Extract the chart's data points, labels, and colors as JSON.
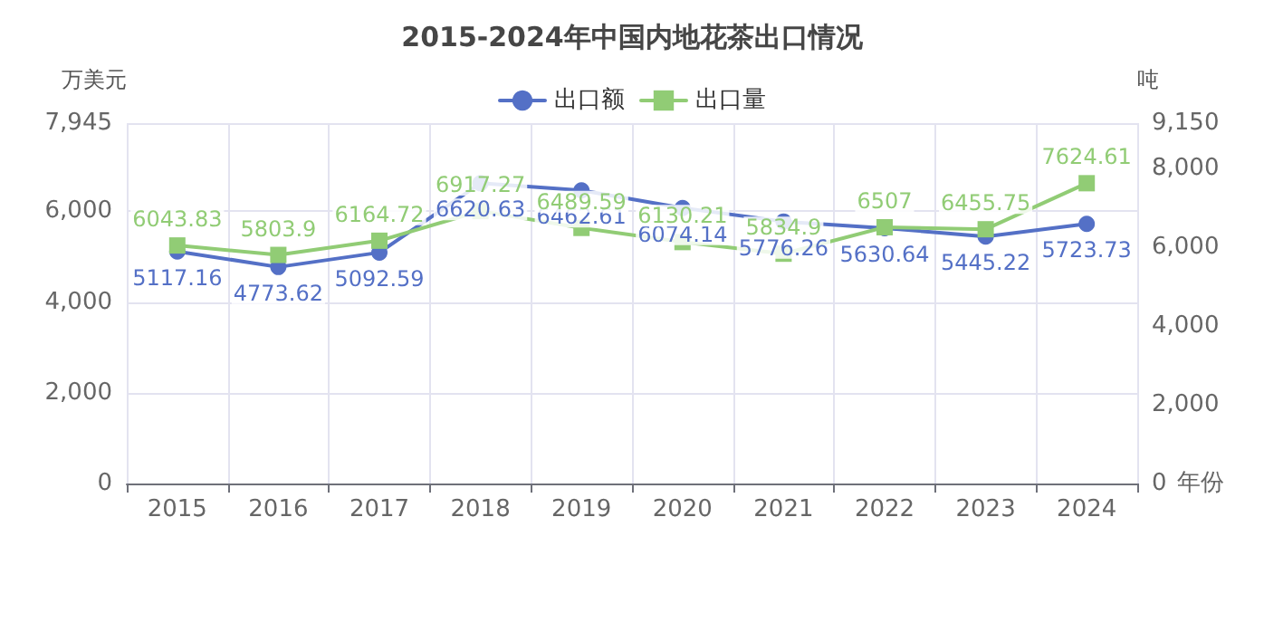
{
  "chart_data": {
    "type": "line",
    "title": "2015-2024年中国内地花茶出口情况",
    "xlabel": "年份",
    "ylabel": "万美元",
    "y2label": "吨",
    "categories": [
      "2015",
      "2016",
      "2017",
      "2018",
      "2019",
      "2020",
      "2021",
      "2022",
      "2023",
      "2024"
    ],
    "series": [
      {
        "name": "出口额",
        "color": "#5470c6",
        "marker": "circle",
        "values": [
          5117.16,
          4773.62,
          5092.59,
          6620.63,
          6462.61,
          6074.14,
          5776.26,
          5630.64,
          5445.22,
          5723.73
        ]
      },
      {
        "name": "出口量",
        "color": "#91cc75",
        "marker": "square",
        "axis": "y2",
        "values": [
          6043.83,
          5803.9,
          6164.72,
          6917.27,
          6489.59,
          6130.21,
          5834.9,
          6507,
          6455.75,
          7624.61
        ]
      }
    ],
    "ylim": [
      0,
      7945
    ],
    "yticks": [
      0,
      {
        "value": 2000,
        "label": "2,000"
      },
      {
        "value": 4000,
        "label": "4,000"
      },
      {
        "value": 6000,
        "label": "6,000"
      },
      {
        "value": 7945,
        "label": "7,945"
      }
    ],
    "y2lim": [
      0,
      9150
    ],
    "y2ticks": [
      0,
      {
        "value": 2000,
        "label": "2,000"
      },
      {
        "value": 4000,
        "label": "4,000"
      },
      {
        "value": 6000,
        "label": "6,000"
      },
      {
        "value": 8000,
        "label": "8,000"
      },
      {
        "value": 9150,
        "label": "9,150"
      }
    ],
    "grid": true,
    "legend": "top",
    "data_labels": true,
    "line_style": "solid"
  }
}
